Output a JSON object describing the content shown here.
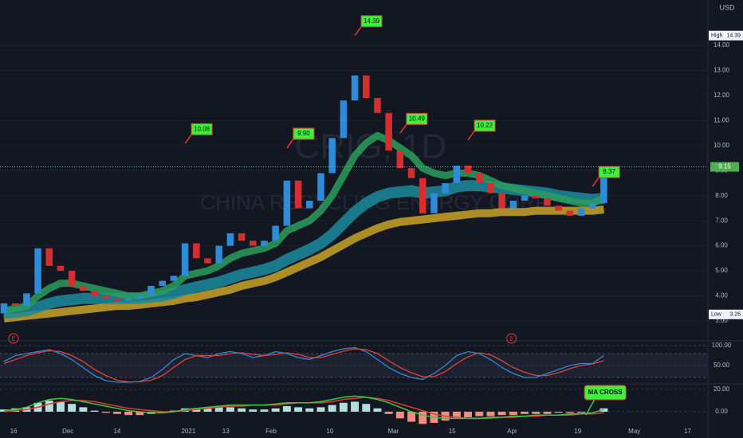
{
  "chart_data": [
    {
      "type": "candlestick",
      "watermark": "CRIG, 1D",
      "subtitle": "CHINA RECYCLING ENERGY CORP",
      "unit": "USD",
      "xlim": [
        -0.35,
        62.2
      ],
      "ylim": [
        2.46,
        15.81
      ],
      "yticks": [
        {
          "value": 3,
          "label": "3.00"
        },
        {
          "value": 4,
          "label": "4.00"
        },
        {
          "value": 5,
          "label": "5.00"
        },
        {
          "value": 6,
          "label": "6.00"
        },
        {
          "value": 7,
          "label": "7.00"
        },
        {
          "value": 8,
          "label": "8.00"
        },
        {
          "value": 9,
          "label": "9.00"
        },
        {
          "value": 10,
          "label": "10.00"
        },
        {
          "value": 11,
          "label": "11.00"
        },
        {
          "value": 12,
          "label": "12.00"
        },
        {
          "value": 13,
          "label": "13.00"
        },
        {
          "value": 14,
          "label": "14.00"
        }
      ],
      "up_color": "#2e8bd8",
      "down_color": "#d32f2f",
      "open": [
        3.3,
        3.7,
        3.6,
        4.1,
        5.9,
        5.2,
        5.0,
        4.4,
        4.2,
        4.0,
        3.9,
        3.8,
        3.9,
        4.0,
        4.4,
        4.6,
        4.8,
        6.1,
        5.5,
        5.3,
        6.0,
        6.5,
        6.2,
        6.0,
        6.2,
        6.8,
        8.6,
        7.5,
        7.8,
        8.9,
        10.3,
        11.8,
        12.8,
        11.9,
        11.3,
        9.8,
        9.1,
        8.7,
        7.3,
        8.1,
        8.5,
        9.2,
        8.9,
        8.5,
        8.1,
        7.5,
        7.8,
        8.0,
        7.9,
        7.6,
        7.4,
        7.2,
        7.5,
        7.7
      ],
      "high": {
        "value": 14.39,
        "label": "14.39"
      },
      "low": {
        "value": 3.26,
        "label": "3.26"
      },
      "close": [
        3.7,
        3.6,
        4.1,
        5.9,
        5.2,
        5.0,
        4.4,
        4.2,
        4.0,
        3.9,
        3.8,
        3.9,
        4.0,
        4.4,
        4.6,
        4.8,
        6.1,
        5.5,
        5.3,
        6.0,
        6.5,
        6.2,
        6.0,
        6.2,
        6.8,
        8.6,
        7.5,
        7.8,
        8.9,
        10.3,
        11.8,
        12.8,
        11.9,
        11.3,
        9.8,
        9.1,
        8.7,
        7.3,
        8.1,
        8.5,
        9.2,
        8.9,
        8.5,
        8.1,
        7.5,
        7.8,
        8.0,
        7.9,
        7.6,
        7.4,
        7.2,
        7.5,
        7.7,
        9.15
      ],
      "series": [
        {
          "color": "#c9a227",
          "width": 10,
          "values": [
            3.1,
            3.15,
            3.2,
            3.25,
            3.3,
            3.35,
            3.4,
            3.45,
            3.5,
            3.55,
            3.6,
            3.6,
            3.65,
            3.7,
            3.75,
            3.8,
            3.9,
            3.95,
            4.05,
            4.15,
            4.25,
            4.4,
            4.5,
            4.6,
            4.75,
            4.95,
            5.15,
            5.35,
            5.55,
            5.8,
            6.05,
            6.3,
            6.5,
            6.7,
            6.85,
            6.95,
            7.0,
            7.05,
            7.1,
            7.15,
            7.2,
            7.25,
            7.3,
            7.3,
            7.35,
            7.35,
            7.35,
            7.4,
            7.4,
            7.4,
            7.4,
            7.4,
            7.4,
            7.45
          ]
        },
        {
          "color": "#1b8a9c",
          "width": 14,
          "values": [
            3.3,
            3.35,
            3.4,
            3.55,
            3.7,
            3.8,
            3.85,
            3.9,
            3.9,
            3.9,
            3.9,
            3.9,
            3.9,
            3.95,
            4.0,
            4.1,
            4.25,
            4.35,
            4.45,
            4.55,
            4.7,
            4.85,
            4.95,
            5.05,
            5.2,
            5.45,
            5.65,
            5.85,
            6.1,
            6.45,
            6.9,
            7.35,
            7.7,
            7.95,
            8.1,
            8.15,
            8.2,
            8.1,
            8.15,
            8.2,
            8.35,
            8.4,
            8.4,
            8.35,
            8.3,
            8.25,
            8.2,
            8.15,
            8.1,
            8.0,
            7.95,
            7.9,
            7.85,
            7.9
          ]
        },
        {
          "color": "#2a9d5c",
          "width": 9,
          "values": [
            3.4,
            3.5,
            3.6,
            4.0,
            4.3,
            4.5,
            4.5,
            4.4,
            4.3,
            4.2,
            4.1,
            4.0,
            4.0,
            4.1,
            4.2,
            4.4,
            4.8,
            4.9,
            5.0,
            5.2,
            5.5,
            5.7,
            5.8,
            5.9,
            6.1,
            6.6,
            6.8,
            7.0,
            7.4,
            8.0,
            8.8,
            9.6,
            10.1,
            10.4,
            10.2,
            9.9,
            9.6,
            9.1,
            8.9,
            8.8,
            8.9,
            8.9,
            8.8,
            8.6,
            8.4,
            8.3,
            8.2,
            8.1,
            8.0,
            7.9,
            7.8,
            7.7,
            7.7,
            7.9
          ]
        }
      ],
      "annotations": [
        {
          "x": 16,
          "value": 10.08,
          "label": "10.08"
        },
        {
          "x": 25,
          "value": 9.9,
          "label": "9.90"
        },
        {
          "x": 31,
          "value": 14.39,
          "label": "14.39"
        },
        {
          "x": 35,
          "value": 10.49,
          "label": "10.49"
        },
        {
          "x": 41,
          "value": 10.22,
          "label": "10.22"
        },
        {
          "x": 52,
          "value": 8.37,
          "label": "8.37"
        }
      ],
      "high_label": "High",
      "low_label": "Low",
      "last": {
        "value": 9.15,
        "label": "9.15"
      },
      "events": [
        {
          "x": 0,
          "label": "E"
        },
        {
          "x": 44,
          "label": "E"
        }
      ]
    },
    {
      "type": "line",
      "xlim": [
        -0.35,
        62.2
      ],
      "ylim": [
        0,
        100
      ],
      "yticks": [
        {
          "value": 100,
          "label": "100.00"
        },
        {
          "value": 50,
          "label": "50.00"
        }
      ],
      "band": [
        20,
        80
      ],
      "series": [
        {
          "color": "#2e8bd8",
          "values": [
            60,
            75,
            80,
            85,
            90,
            80,
            65,
            45,
            25,
            12,
            8,
            8,
            10,
            20,
            40,
            65,
            80,
            75,
            70,
            80,
            85,
            80,
            70,
            75,
            85,
            80,
            70,
            65,
            75,
            85,
            92,
            95,
            85,
            65,
            45,
            30,
            20,
            15,
            30,
            50,
            75,
            85,
            80,
            65,
            45,
            30,
            20,
            20,
            30,
            40,
            50,
            55,
            55,
            75
          ]
        },
        {
          "color": "#e0433a",
          "values": [
            55,
            65,
            75,
            82,
            87,
            85,
            75,
            60,
            40,
            25,
            13,
            9,
            9,
            13,
            25,
            45,
            65,
            75,
            75,
            75,
            80,
            82,
            78,
            75,
            78,
            82,
            78,
            70,
            70,
            78,
            86,
            92,
            90,
            80,
            62,
            45,
            32,
            22,
            22,
            35,
            55,
            72,
            82,
            77,
            62,
            45,
            33,
            25,
            25,
            32,
            42,
            50,
            54,
            62
          ]
        }
      ]
    },
    {
      "type": "macd",
      "xlim": [
        -0.35,
        62.2
      ],
      "ylim": [
        -23.6,
        25
      ],
      "yticks": [
        {
          "value": 20,
          "label": "20.00"
        },
        {
          "value": 0,
          "label": "0.00"
        }
      ],
      "histogram": [
        2,
        3,
        4,
        8,
        10,
        9,
        7,
        4,
        1,
        -1,
        -2,
        -3,
        -3,
        -2,
        -1,
        1,
        3,
        3,
        3,
        4,
        4,
        3,
        2,
        2,
        3,
        5,
        4,
        3,
        4,
        6,
        8,
        9,
        7,
        3,
        -2,
        -6,
        -9,
        -11,
        -10,
        -8,
        -6,
        -5,
        -4,
        -4,
        -3,
        -3,
        -2,
        -2,
        -2,
        -1,
        -1,
        -1,
        0,
        3
      ],
      "macd": [
        1,
        2,
        4,
        8,
        11,
        12,
        11,
        9,
        7,
        5,
        3,
        1,
        0,
        -1,
        -1,
        0,
        2,
        3,
        4,
        5,
        6,
        6,
        6,
        6,
        7,
        8,
        8,
        8,
        9,
        11,
        13,
        14,
        13,
        11,
        8,
        4,
        0,
        -3,
        -5,
        -6,
        -6,
        -6,
        -6,
        -5,
        -5,
        -4,
        -4,
        -3,
        -3,
        -3,
        -2,
        -2,
        -1,
        2
      ],
      "signal": [
        0,
        1,
        2,
        4,
        7,
        9,
        10,
        10,
        9,
        7,
        5,
        3,
        2,
        1,
        0,
        0,
        1,
        2,
        3,
        4,
        5,
        5,
        6,
        6,
        6,
        7,
        8,
        8,
        8,
        9,
        11,
        12,
        13,
        12,
        10,
        7,
        4,
        1,
        -2,
        -4,
        -5,
        -6,
        -6,
        -6,
        -5,
        -5,
        -4,
        -4,
        -3,
        -3,
        -3,
        -2,
        -2,
        -1
      ],
      "annotation": {
        "x": 52,
        "label": "MA CROSS"
      },
      "xticks": [
        {
          "value": 0.85,
          "label": "16"
        },
        {
          "value": 5.65,
          "label": "Dec"
        },
        {
          "value": 10.0,
          "label": "14"
        },
        {
          "value": 16.3,
          "label": "2021"
        },
        {
          "value": 19.6,
          "label": "13"
        },
        {
          "value": 23.6,
          "label": "Feb"
        },
        {
          "value": 28.8,
          "label": "10"
        },
        {
          "value": 34.4,
          "label": "Mar"
        },
        {
          "value": 39.6,
          "label": "15"
        },
        {
          "value": 44.9,
          "label": "Apr"
        },
        {
          "value": 50.7,
          "label": "19"
        },
        {
          "value": 55.7,
          "label": "May"
        },
        {
          "value": 60.4,
          "label": "17"
        }
      ]
    }
  ]
}
